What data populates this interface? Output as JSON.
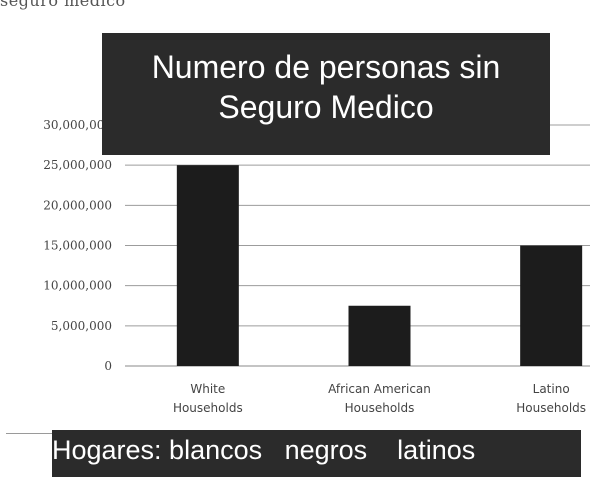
{
  "fragment_text": "seguro medico",
  "chart_data": {
    "type": "bar",
    "categories": [
      [
        "White",
        "Households"
      ],
      [
        "African American",
        "Households"
      ],
      [
        "Latino",
        "Households"
      ]
    ],
    "values": [
      25000000,
      7500000,
      15000000
    ],
    "ylim": [
      0,
      30000000
    ],
    "yticks": [
      0,
      5000000,
      10000000,
      15000000,
      20000000,
      25000000,
      30000000
    ],
    "ytick_labels": [
      "0",
      "5,000,000",
      "10,000,000",
      "15,000,000",
      "20,000,000",
      "25,000,000",
      "30,000,000"
    ],
    "grid": true,
    "bar_color": "#1c1c1c",
    "title_lines": [
      "Numero de personas sin",
      "Seguro Medico"
    ],
    "caption": "Hogares: blancos   negros    latinos"
  }
}
